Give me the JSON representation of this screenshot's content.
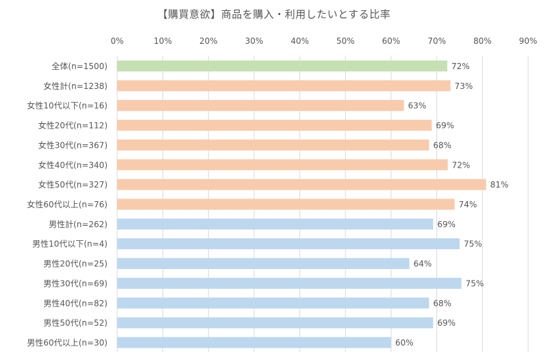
{
  "chart_data": {
    "type": "bar",
    "orientation": "horizontal",
    "title": "【購買意欲】商品を購入・利用したいとする比率",
    "xlim": [
      0,
      90
    ],
    "x_ticks": [
      "0%",
      "10%",
      "20%",
      "30%",
      "40%",
      "50%",
      "60%",
      "70%",
      "80%",
      "90%"
    ],
    "grid": true,
    "value_suffix": "%",
    "categories": [
      "全体(n=1500)",
      "女性計(n=1238)",
      "女性10代以下(n=16)",
      "女性20代(n=112)",
      "女性30代(n=367)",
      "女性40代(n=340)",
      "女性50代(n=327)",
      "女性60代以上(n=76)",
      "男性計(n=262)",
      "男性10代以下(n=4)",
      "男性20代(n=25)",
      "男性30代(n=69)",
      "男性40代(n=82)",
      "男性50代(n=52)",
      "男性60代以上(n=30)"
    ],
    "values": [
      72.3,
      73,
      62.8,
      68.9,
      68.3,
      72.4,
      80.8,
      73.9,
      69.2,
      75,
      64,
      75.4,
      68.3,
      69.2,
      60
    ],
    "value_labels": [
      "72%",
      "73%",
      "63%",
      "69%",
      "68%",
      "72%",
      "81%",
      "74%",
      "69%",
      "75%",
      "64%",
      "75%",
      "68%",
      "69%",
      "60%"
    ],
    "bar_colors": [
      "#c6e0b4",
      "#f8cbad",
      "#f8cbad",
      "#f8cbad",
      "#f8cbad",
      "#f8cbad",
      "#f8cbad",
      "#f8cbad",
      "#bdd7ee",
      "#bdd7ee",
      "#bdd7ee",
      "#bdd7ee",
      "#bdd7ee",
      "#bdd7ee",
      "#bdd7ee"
    ],
    "colors": {
      "grid": "#d9d9d9",
      "text": "#555555"
    }
  }
}
